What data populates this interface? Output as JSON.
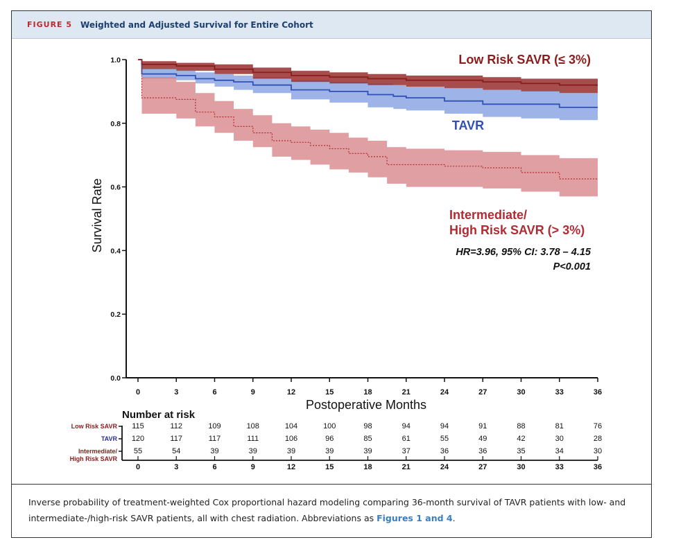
{
  "header": {
    "label": "FIGURE 5",
    "title": "Weighted and Adjusted Survival for Entire Cohort",
    "label_color": "#c0282d",
    "title_color": "#1c3f72"
  },
  "chart_data": {
    "type": "line",
    "step": true,
    "ylabel": "Survival Rate",
    "xlabel": "Postoperative Months",
    "xlim": [
      0,
      36
    ],
    "ylim": [
      0.0,
      1.0
    ],
    "xticks": [
      0,
      3,
      6,
      9,
      12,
      15,
      18,
      21,
      24,
      27,
      30,
      33,
      36
    ],
    "yticks": [
      0.0,
      0.2,
      0.4,
      0.6,
      0.8,
      1.0
    ],
    "ytick_labels": [
      "0.0",
      "0.2",
      "0.4",
      "0.6",
      "0.8",
      "1.0"
    ],
    "series": [
      {
        "key": "tavr",
        "name": "TAVR",
        "color": "#3050b4",
        "band_color": "#7d9be0",
        "style": "solid",
        "x": [
          0,
          0.3,
          3,
          4.5,
          6,
          7.5,
          9,
          12,
          15,
          18,
          20,
          21,
          24,
          27,
          30,
          33,
          36
        ],
        "y": [
          1.0,
          0.955,
          0.95,
          0.94,
          0.935,
          0.93,
          0.92,
          0.905,
          0.9,
          0.89,
          0.885,
          0.88,
          0.87,
          0.86,
          0.86,
          0.85,
          0.85
        ],
        "lower": [
          1.0,
          0.94,
          0.935,
          0.925,
          0.915,
          0.905,
          0.895,
          0.875,
          0.865,
          0.85,
          0.845,
          0.84,
          0.83,
          0.82,
          0.815,
          0.81,
          0.81
        ],
        "upper": [
          1.0,
          0.97,
          0.965,
          0.96,
          0.955,
          0.95,
          0.945,
          0.935,
          0.93,
          0.925,
          0.92,
          0.915,
          0.91,
          0.905,
          0.9,
          0.895,
          0.895
        ]
      },
      {
        "key": "low",
        "name": "Low Risk SAVR (≤ 3%)",
        "color": "#8b1c1c",
        "band_color": "#962f2f",
        "style": "solid",
        "x": [
          0,
          0.3,
          3,
          6,
          9,
          12,
          15,
          18,
          21,
          24,
          27,
          30,
          33,
          36
        ],
        "y": [
          1.0,
          0.985,
          0.98,
          0.97,
          0.96,
          0.95,
          0.945,
          0.94,
          0.935,
          0.935,
          0.93,
          0.925,
          0.92,
          0.92
        ],
        "lower": [
          1.0,
          0.97,
          0.965,
          0.955,
          0.94,
          0.93,
          0.925,
          0.92,
          0.915,
          0.91,
          0.905,
          0.9,
          0.895,
          0.895
        ],
        "upper": [
          1.0,
          0.995,
          0.99,
          0.985,
          0.975,
          0.965,
          0.96,
          0.955,
          0.95,
          0.95,
          0.945,
          0.94,
          0.94,
          0.94
        ]
      },
      {
        "key": "int",
        "name": "Intermediate/ High Risk SAVR (> 3%)",
        "color": "#b02c32",
        "band_color": "#d67f83",
        "style": "dashed",
        "x": [
          0,
          0.3,
          3,
          4.5,
          6,
          7.5,
          9,
          10.5,
          12,
          13.5,
          15,
          16.5,
          18,
          19.5,
          21,
          24,
          27,
          30,
          33,
          36
        ],
        "y": [
          1.0,
          0.88,
          0.875,
          0.835,
          0.82,
          0.79,
          0.77,
          0.745,
          0.74,
          0.73,
          0.72,
          0.705,
          0.695,
          0.67,
          0.67,
          0.665,
          0.66,
          0.645,
          0.625,
          0.625
        ],
        "lower": [
          1.0,
          0.83,
          0.815,
          0.79,
          0.77,
          0.745,
          0.725,
          0.695,
          0.685,
          0.67,
          0.655,
          0.645,
          0.63,
          0.61,
          0.6,
          0.6,
          0.595,
          0.585,
          0.57,
          0.57
        ],
        "upper": [
          1.0,
          0.945,
          0.93,
          0.895,
          0.87,
          0.845,
          0.825,
          0.8,
          0.79,
          0.78,
          0.77,
          0.755,
          0.745,
          0.725,
          0.72,
          0.715,
          0.71,
          0.7,
          0.69,
          0.69
        ]
      }
    ],
    "annotations": {
      "low_label": "Low Risk SAVR (≤ 3%)",
      "tavr_label": "TAVR",
      "int_label_line1": "Intermediate/",
      "int_label_line2": "High Risk SAVR (> 3%)",
      "hr_text": "HR=3.96, 95% CI: 3.78 – 4.15",
      "p_text": "P<0.001"
    },
    "risk_table": {
      "title": "Number at risk",
      "time_points": [
        0,
        3,
        6,
        9,
        12,
        15,
        18,
        21,
        24,
        27,
        30,
        33,
        36
      ],
      "rows": [
        {
          "label": "Low Risk SAVR",
          "color": "#8b1c1c",
          "values": [
            115,
            112,
            109,
            108,
            104,
            100,
            98,
            94,
            94,
            91,
            88,
            81,
            76
          ]
        },
        {
          "label": "TAVR",
          "color": "#2a2f8f",
          "values": [
            120,
            117,
            117,
            111,
            106,
            96,
            85,
            61,
            55,
            49,
            42,
            30,
            28
          ]
        },
        {
          "label_line1": "Intermediate/",
          "label_line2": "High Risk SAVR",
          "color": "#8b1c1c",
          "values": [
            55,
            54,
            39,
            39,
            39,
            39,
            39,
            37,
            36,
            36,
            35,
            34,
            30
          ]
        }
      ]
    }
  },
  "caption": {
    "text": "Inverse probability of treatment-weighted Cox proportional hazard modeling comparing 36-month survival of TAVR patients with low- and intermediate-/high-risk SAVR patients, all with chest radiation. Abbreviations as ",
    "link_text": "Figures 1 and 4",
    "link_color": "#3a7fc1",
    "end": "."
  }
}
